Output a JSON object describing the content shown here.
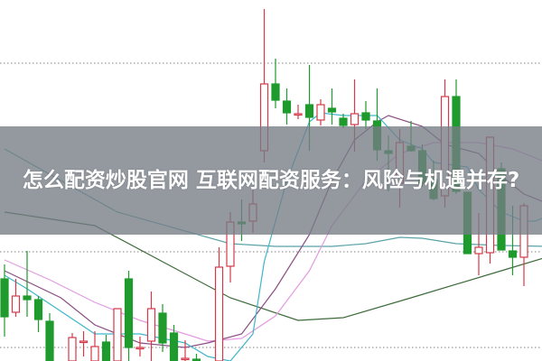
{
  "banner": {
    "title": "怎么配资炒股官网 互联网配资服务：风险与机遇并存?"
  },
  "chart_data": {
    "type": "candlestick",
    "title": "",
    "xlabel": "",
    "ylabel": "",
    "ylim": [
      0,
      400
    ],
    "grid": {
      "horizontal_dotted": true,
      "levels": [
        330,
        121,
        15
      ]
    },
    "colors": {
      "up": "#d4394a",
      "down": "#1f9a2d",
      "grid": "#9a9a9a"
    },
    "candles": [
      {
        "o": 91,
        "c": 49,
        "h": 107,
        "l": 27,
        "dir": "down"
      },
      {
        "o": 54,
        "c": 72,
        "h": 91,
        "l": 49,
        "dir": "up"
      },
      {
        "o": 72,
        "c": 68,
        "h": 122,
        "l": 49,
        "dir": "down"
      },
      {
        "o": 68,
        "c": 46,
        "h": 72,
        "l": 32,
        "dir": "down"
      },
      {
        "o": 44,
        "c": 0,
        "h": 53,
        "l": 0,
        "dir": "down"
      },
      null,
      {
        "o": 0,
        "c": 26,
        "h": 31,
        "l": 0,
        "dir": "up"
      },
      {
        "o": 21,
        "c": 22,
        "h": 33,
        "l": 5,
        "dir": "up"
      },
      {
        "o": 0,
        "c": 16,
        "h": 33,
        "l": 0,
        "dir": "up"
      },
      {
        "o": 21,
        "c": 0,
        "h": 29,
        "l": 0,
        "dir": "down"
      },
      {
        "o": 0,
        "c": 58,
        "h": 58,
        "l": 0,
        "dir": "up"
      },
      {
        "o": 91,
        "c": 15,
        "h": 100,
        "l": 0,
        "dir": "down"
      },
      {
        "o": 14,
        "c": 15,
        "h": 27,
        "l": 5,
        "dir": "up"
      },
      {
        "o": 22,
        "c": 58,
        "h": 77,
        "l": 0,
        "dir": "up"
      },
      {
        "o": 53,
        "c": 20,
        "h": 63,
        "l": 10,
        "dir": "down"
      },
      {
        "o": 31,
        "c": 0,
        "h": 40,
        "l": 0,
        "dir": "down"
      },
      {
        "o": 2,
        "c": 3,
        "h": 23,
        "l": 0,
        "dir": "up"
      },
      {
        "o": 2,
        "c": 0,
        "h": 8,
        "l": 0,
        "dir": "down"
      },
      null,
      {
        "o": 0,
        "c": 104,
        "h": 126,
        "l": 0,
        "dir": "up"
      },
      {
        "o": 105,
        "c": 154,
        "h": 165,
        "l": 87,
        "dir": "up"
      },
      {
        "o": 154,
        "c": 152,
        "h": 179,
        "l": 133,
        "dir": "down"
      },
      {
        "o": 155,
        "c": 174,
        "h": 190,
        "l": 142,
        "dir": "up"
      },
      {
        "o": 233,
        "c": 307,
        "h": 390,
        "l": 220,
        "dir": "up"
      },
      {
        "o": 307,
        "c": 289,
        "h": 335,
        "l": 280,
        "dir": "down"
      },
      {
        "o": 288,
        "c": 275,
        "h": 302,
        "l": 262,
        "dir": "down"
      },
      {
        "o": 274,
        "c": 274,
        "h": 284,
        "l": 268,
        "dir": "up"
      },
      {
        "o": 284,
        "c": 270,
        "h": 328,
        "l": 233,
        "dir": "down"
      },
      {
        "o": 267,
        "c": 284,
        "h": 290,
        "l": 261,
        "dir": "up"
      },
      {
        "o": 280,
        "c": 276,
        "h": 302,
        "l": 262,
        "dir": "down"
      },
      {
        "o": 269,
        "c": 261,
        "h": 274,
        "l": 258,
        "dir": "down"
      },
      {
        "o": 262,
        "c": 274,
        "h": 312,
        "l": 232,
        "dir": "up"
      },
      {
        "o": 275,
        "c": 267,
        "h": 288,
        "l": 257,
        "dir": "down"
      },
      {
        "o": 266,
        "c": 234,
        "h": 302,
        "l": 222,
        "dir": "down"
      },
      {
        "o": 233,
        "c": 230,
        "h": 250,
        "l": 188,
        "dir": "down"
      },
      {
        "o": 197,
        "c": 242,
        "h": 257,
        "l": 170,
        "dir": "up"
      },
      {
        "o": 238,
        "c": 233,
        "h": 266,
        "l": 232,
        "dir": "down"
      },
      {
        "o": 233,
        "c": 197,
        "h": 240,
        "l": 193,
        "dir": "down"
      },
      {
        "o": 201,
        "c": 180,
        "h": 222,
        "l": 178,
        "dir": "down"
      },
      {
        "o": 183,
        "c": 293,
        "h": 312,
        "l": 170,
        "dir": "up"
      },
      {
        "o": 293,
        "c": 188,
        "h": 312,
        "l": 185,
        "dir": "down"
      },
      {
        "o": 187,
        "c": 119,
        "h": 187,
        "l": 119,
        "dir": "down"
      },
      {
        "o": 119,
        "c": 126,
        "h": 164,
        "l": 95,
        "dir": "up"
      },
      {
        "o": 120,
        "c": 248,
        "h": 248,
        "l": 108,
        "dir": "up"
      },
      {
        "o": 213,
        "c": 123,
        "h": 220,
        "l": 123,
        "dir": "down"
      },
      {
        "o": 122,
        "c": 115,
        "h": 172,
        "l": 95,
        "dir": "down"
      },
      {
        "o": 115,
        "c": 172,
        "h": 175,
        "l": 83,
        "dir": "up"
      }
    ],
    "moving_averages": [
      {
        "color": "#3d6b3a",
        "points": [
          [
            0,
            165
          ],
          [
            8,
            150
          ],
          [
            14,
            110
          ],
          [
            20,
            70
          ],
          [
            26,
            45
          ],
          [
            30,
            48
          ],
          [
            36,
            70
          ],
          [
            44,
            100
          ],
          [
            52,
            130
          ],
          [
            58,
            155
          ],
          [
            64,
            180
          ],
          [
            70,
            200
          ]
        ]
      },
      {
        "color": "#5aa3a8",
        "points": [
          [
            0,
            235
          ],
          [
            10,
            165
          ],
          [
            20,
            130
          ],
          [
            24,
            127
          ],
          [
            29,
            127
          ],
          [
            32,
            130
          ],
          [
            35,
            137
          ],
          [
            37,
            136
          ],
          [
            40,
            130
          ],
          [
            44,
            128
          ],
          [
            48,
            127
          ]
        ]
      },
      {
        "color": "#e49be0",
        "points": [
          [
            0,
            112
          ],
          [
            4,
            90
          ],
          [
            8,
            65
          ],
          [
            12,
            45
          ],
          [
            16,
            30
          ],
          [
            18,
            22
          ],
          [
            21,
            25
          ],
          [
            24,
            50
          ],
          [
            27,
            100
          ],
          [
            29,
            150
          ],
          [
            32,
            200
          ],
          [
            35,
            230
          ],
          [
            38,
            242
          ],
          [
            42,
            242
          ],
          [
            45,
            235
          ],
          [
            48,
            220
          ]
        ]
      },
      {
        "color": "#8a4d83",
        "points": [
          [
            0,
            100
          ],
          [
            2,
            88
          ],
          [
            5,
            70
          ],
          [
            8,
            40
          ],
          [
            12,
            20
          ],
          [
            16,
            15
          ],
          [
            18,
            20
          ],
          [
            21,
            30
          ],
          [
            24,
            80
          ],
          [
            27,
            140
          ],
          [
            29,
            200
          ],
          [
            31,
            245
          ],
          [
            33,
            265
          ],
          [
            34,
            272
          ],
          [
            37,
            260
          ],
          [
            39,
            240
          ],
          [
            42,
            230
          ],
          [
            44,
            205
          ],
          [
            46,
            185
          ],
          [
            48,
            175
          ]
        ]
      },
      {
        "color": "#3fb6c9",
        "points": [
          [
            0,
            95
          ],
          [
            2,
            80
          ],
          [
            5,
            55
          ],
          [
            8,
            30
          ],
          [
            12,
            30
          ],
          [
            16,
            20
          ],
          [
            18,
            5
          ],
          [
            20,
            0
          ],
          [
            22,
            30
          ],
          [
            23,
            110
          ],
          [
            25,
            200
          ],
          [
            27,
            265
          ],
          [
            28,
            275
          ],
          [
            30,
            272
          ],
          [
            33,
            272
          ],
          [
            35,
            245
          ],
          [
            37,
            235
          ],
          [
            38,
            220
          ],
          [
            41,
            215
          ],
          [
            42,
            190
          ],
          [
            44,
            165
          ],
          [
            46,
            155
          ],
          [
            47,
            155
          ],
          [
            48,
            160
          ]
        ]
      }
    ]
  }
}
